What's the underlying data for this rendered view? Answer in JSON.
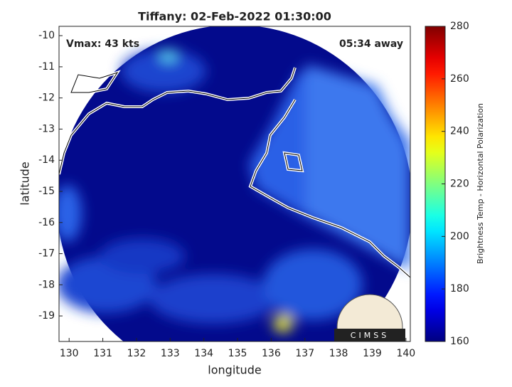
{
  "chart_data": {
    "type": "image",
    "title": "Tiffany: 02-Feb-2022 01:30:00",
    "annotations": [
      "Vmax: 43 kts",
      "05:34 away"
    ],
    "xlabel": "longitude",
    "ylabel": "latitude",
    "xlim": [
      129.7,
      140.13
    ],
    "xticks": [
      130,
      131,
      132,
      133,
      134,
      135,
      136,
      137,
      138,
      139,
      140
    ],
    "ylim": [
      -19.82,
      -9.7
    ],
    "yticks": [
      -10,
      -11,
      -12,
      -13,
      -14,
      -15,
      -16,
      -17,
      -18,
      -19
    ],
    "colorbar": {
      "label": "Brightness Temp - Horizontal Polarization",
      "lim": [
        160,
        280
      ],
      "ticks": [
        160,
        180,
        200,
        220,
        240,
        260,
        280
      ],
      "colormap": "jet"
    },
    "logo": "CIMSS"
  }
}
